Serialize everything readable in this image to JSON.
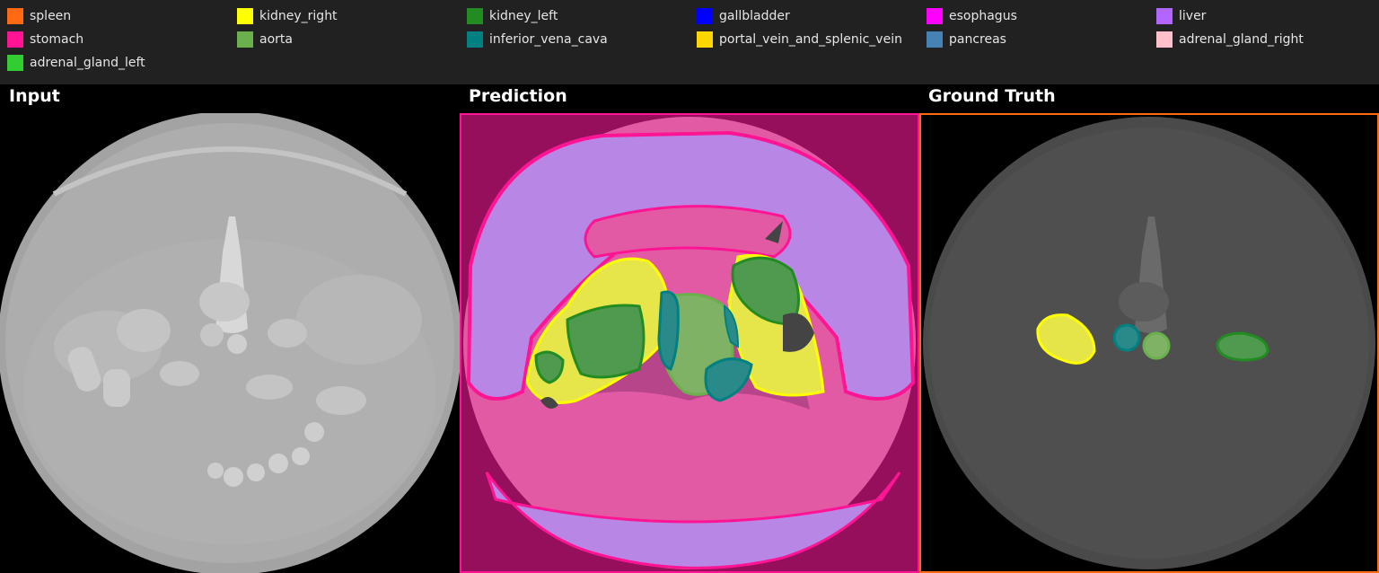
{
  "legend": [
    {
      "label": "spleen",
      "color": "#ff6a13"
    },
    {
      "label": "kidney_right",
      "color": "#ffff00"
    },
    {
      "label": "kidney_left",
      "color": "#228b22"
    },
    {
      "label": "gallbladder",
      "color": "#0000ff"
    },
    {
      "label": "esophagus",
      "color": "#ff00ff"
    },
    {
      "label": "liver",
      "color": "#b266ff"
    },
    {
      "label": "stomach",
      "color": "#ff1493"
    },
    {
      "label": "aorta",
      "color": "#6ab04c"
    },
    {
      "label": "inferior_vena_cava",
      "color": "#008080"
    },
    {
      "label": "portal_vein_and_splenic_vein",
      "color": "#ffd700"
    },
    {
      "label": "pancreas",
      "color": "#4682b4"
    },
    {
      "label": "adrenal_gland_right",
      "color": "#ffc0cb"
    },
    {
      "label": "adrenal_gland_left",
      "color": "#32cd32"
    }
  ],
  "panels": {
    "input_title": "Input",
    "prediction_title": "Prediction",
    "ground_truth_title": "Ground Truth",
    "prediction_border_color": "#ff1493",
    "ground_truth_border_color": "#ff6a13"
  }
}
